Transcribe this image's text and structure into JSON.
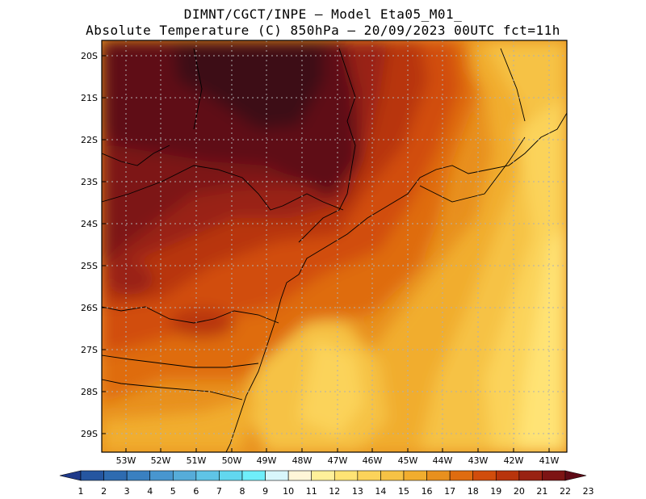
{
  "header": {
    "line1": "DIMNT/CGCT/INPE  —   Model Eta05_M01_",
    "line2": "Absolute Temperature (C) 850hPa  —  20/09/2023 00UTC fct=11h"
  },
  "map": {
    "lat_labels": [
      "20S",
      "21S",
      "22S",
      "23S",
      "24S",
      "25S",
      "26S",
      "27S",
      "28S",
      "29S"
    ],
    "lon_labels": [
      "53W",
      "52W",
      "51W",
      "50W",
      "49W",
      "48W",
      "47W",
      "46W",
      "45W",
      "44W",
      "43W",
      "42W",
      "41W"
    ]
  },
  "colorbar": {
    "labels": [
      "1",
      "2",
      "3",
      "4",
      "5",
      "6",
      "7",
      "8",
      "9",
      "10",
      "11",
      "12",
      "13",
      "14",
      "15",
      "16",
      "17",
      "18",
      "19",
      "20",
      "21",
      "22",
      "23"
    ],
    "colors": [
      "#1f3a8a",
      "#2556a0",
      "#2e6bb0",
      "#3a80c0",
      "#4896cf",
      "#56acd9",
      "#5fc4e6",
      "#62d7ef",
      "#6feefa",
      "#d8f6fb",
      "#fff6d8",
      "#fff09a",
      "#ffe374",
      "#fbd35a",
      "#f6c245",
      "#f1ad2e",
      "#e8901e",
      "#df6c10",
      "#d14d0c",
      "#b8340c",
      "#992212",
      "#7d1414",
      "#5e0a16"
    ]
  }
}
